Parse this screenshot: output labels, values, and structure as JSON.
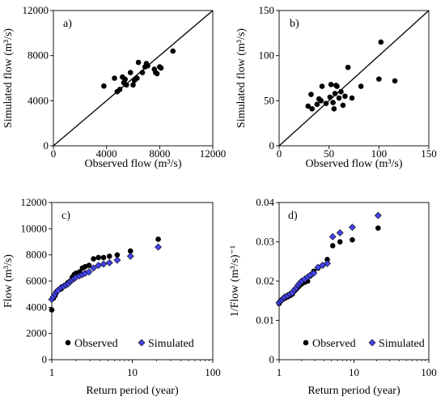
{
  "chart_data": [
    {
      "panel": "a)",
      "type": "scatter",
      "xlabel": "Observed flow (m³/s)",
      "ylabel": "Simulated flow (m³/s)",
      "xlim": [
        0,
        12000
      ],
      "ylim": [
        0,
        12000
      ],
      "xticks": [
        "0",
        "4000",
        "8000",
        "12000"
      ],
      "yticks": [
        "0",
        "4000",
        "8000",
        "12000"
      ],
      "one_to_one_line": true,
      "series": [
        {
          "points": [
            [
              3800,
              5300
            ],
            [
              4600,
              6000
            ],
            [
              4800,
              4800
            ],
            [
              5000,
              5000
            ],
            [
              5200,
              6100
            ],
            [
              5300,
              5600
            ],
            [
              5400,
              5900
            ],
            [
              5500,
              5400
            ],
            [
              5800,
              6500
            ],
            [
              6000,
              5400
            ],
            [
              6100,
              5800
            ],
            [
              6300,
              6000
            ],
            [
              6400,
              7400
            ],
            [
              6700,
              6500
            ],
            [
              6900,
              7000
            ],
            [
              7000,
              7300
            ],
            [
              7100,
              7100
            ],
            [
              7600,
              6800
            ],
            [
              7700,
              6500
            ],
            [
              7800,
              6400
            ],
            [
              8000,
              7000
            ],
            [
              8100,
              6900
            ],
            [
              9000,
              8400
            ]
          ]
        }
      ]
    },
    {
      "panel": "b)",
      "type": "scatter",
      "xlabel": "Observed flow (m³/s)",
      "ylabel": "Simulated flow (m³/s)",
      "xlim": [
        0,
        150
      ],
      "ylim": [
        0,
        150
      ],
      "xticks": [
        "0",
        "50",
        "100",
        "150"
      ],
      "yticks": [
        "0",
        "50",
        "100",
        "150"
      ],
      "one_to_one_line": true,
      "series": [
        {
          "points": [
            [
              29,
              44
            ],
            [
              32,
              57
            ],
            [
              33,
              41
            ],
            [
              38,
              46
            ],
            [
              40,
              52
            ],
            [
              42,
              50
            ],
            [
              43,
              66
            ],
            [
              47,
              47
            ],
            [
              51,
              54
            ],
            [
              52,
              68
            ],
            [
              54,
              48
            ],
            [
              55,
              41
            ],
            [
              56,
              58
            ],
            [
              57,
              67
            ],
            [
              58,
              66
            ],
            [
              60,
              53
            ],
            [
              62,
              60
            ],
            [
              64,
              45
            ],
            [
              66,
              55
            ],
            [
              69,
              87
            ],
            [
              73,
              53
            ],
            [
              82,
              66
            ],
            [
              100,
              74
            ],
            [
              102,
              115
            ],
            [
              116,
              72
            ]
          ]
        }
      ]
    },
    {
      "panel": "c)",
      "type": "scatter",
      "xlabel": "Return period (year)",
      "ylabel": "Flow (m³/s)",
      "xscale": "log",
      "xlim": [
        1,
        100
      ],
      "ylim": [
        0,
        12000
      ],
      "xticks": [
        "1",
        "10",
        "100"
      ],
      "yticks": [
        "0",
        "2000",
        "4000",
        "6000",
        "8000",
        "10000",
        "12000"
      ],
      "legend": "bottom",
      "series": [
        {
          "name": "Observed",
          "marker": "circle",
          "color": "#000000",
          "points": [
            [
              1.0,
              3800
            ],
            [
              1.05,
              4700
            ],
            [
              1.1,
              4900
            ],
            [
              1.15,
              5200
            ],
            [
              1.2,
              5300
            ],
            [
              1.3,
              5400
            ],
            [
              1.4,
              5600
            ],
            [
              1.5,
              5700
            ],
            [
              1.6,
              5900
            ],
            [
              1.7,
              6000
            ],
            [
              1.8,
              6300
            ],
            [
              1.9,
              6500
            ],
            [
              2.0,
              6600
            ],
            [
              2.2,
              6700
            ],
            [
              2.4,
              7000
            ],
            [
              2.6,
              7100
            ],
            [
              2.9,
              7200
            ],
            [
              3.3,
              7700
            ],
            [
              3.8,
              7800
            ],
            [
              4.4,
              7800
            ],
            [
              5.2,
              7900
            ],
            [
              6.5,
              8000
            ],
            [
              9.5,
              8300
            ],
            [
              21.0,
              9200
            ]
          ]
        },
        {
          "name": "Simulated",
          "marker": "diamond",
          "color": "#4444ee",
          "points": [
            [
              1.0,
              4600
            ],
            [
              1.05,
              4800
            ],
            [
              1.1,
              5000
            ],
            [
              1.15,
              5200
            ],
            [
              1.2,
              5300
            ],
            [
              1.3,
              5500
            ],
            [
              1.4,
              5600
            ],
            [
              1.5,
              5700
            ],
            [
              1.6,
              5800
            ],
            [
              1.7,
              6000
            ],
            [
              1.8,
              6100
            ],
            [
              1.9,
              6200
            ],
            [
              2.0,
              6300
            ],
            [
              2.2,
              6400
            ],
            [
              2.4,
              6500
            ],
            [
              2.6,
              6600
            ],
            [
              2.9,
              6700
            ],
            [
              3.3,
              7000
            ],
            [
              3.8,
              7200
            ],
            [
              4.4,
              7300
            ],
            [
              5.2,
              7400
            ],
            [
              6.5,
              7600
            ],
            [
              9.5,
              7900
            ],
            [
              21.0,
              8600
            ]
          ]
        }
      ]
    },
    {
      "panel": "d)",
      "type": "scatter",
      "xlabel": "Return period (year)",
      "ylabel": "1/Flow (m³/s)⁻¹",
      "xscale": "log",
      "xlim": [
        1,
        100
      ],
      "ylim": [
        0,
        0.04
      ],
      "xticks": [
        "1",
        "10",
        "100"
      ],
      "yticks": [
        "0",
        "0.01",
        "0.02",
        "0.03",
        "0.04"
      ],
      "legend": "bottom",
      "series": [
        {
          "name": "Observed",
          "marker": "circle",
          "color": "#000000",
          "points": [
            [
              1.0,
              0.0143
            ],
            [
              1.05,
              0.015
            ],
            [
              1.1,
              0.0153
            ],
            [
              1.15,
              0.0155
            ],
            [
              1.2,
              0.0157
            ],
            [
              1.3,
              0.016
            ],
            [
              1.4,
              0.0163
            ],
            [
              1.5,
              0.0167
            ],
            [
              1.6,
              0.0175
            ],
            [
              1.7,
              0.018
            ],
            [
              1.8,
              0.0185
            ],
            [
              1.9,
              0.019
            ],
            [
              2.0,
              0.0193
            ],
            [
              2.2,
              0.0197
            ],
            [
              2.4,
              0.02
            ],
            [
              2.6,
              0.0213
            ],
            [
              2.9,
              0.0225
            ],
            [
              3.3,
              0.0233
            ],
            [
              3.8,
              0.024
            ],
            [
              4.4,
              0.0255
            ],
            [
              5.2,
              0.029
            ],
            [
              6.5,
              0.03
            ],
            [
              9.5,
              0.0305
            ],
            [
              21.0,
              0.0335
            ]
          ]
        },
        {
          "name": "Simulated",
          "marker": "diamond",
          "color": "#4444ee",
          "points": [
            [
              1.0,
              0.0145
            ],
            [
              1.05,
              0.015
            ],
            [
              1.1,
              0.0153
            ],
            [
              1.15,
              0.0157
            ],
            [
              1.2,
              0.016
            ],
            [
              1.3,
              0.0163
            ],
            [
              1.4,
              0.0167
            ],
            [
              1.5,
              0.017
            ],
            [
              1.6,
              0.0178
            ],
            [
              1.7,
              0.0183
            ],
            [
              1.8,
              0.019
            ],
            [
              1.9,
              0.0195
            ],
            [
              2.0,
              0.02
            ],
            [
              2.2,
              0.0205
            ],
            [
              2.4,
              0.021
            ],
            [
              2.6,
              0.0215
            ],
            [
              2.9,
              0.022
            ],
            [
              3.3,
              0.0235
            ],
            [
              3.8,
              0.024
            ],
            [
              4.4,
              0.0245
            ],
            [
              5.2,
              0.0313
            ],
            [
              6.5,
              0.0323
            ],
            [
              9.5,
              0.0337
            ],
            [
              21.0,
              0.0367
            ]
          ]
        }
      ]
    }
  ]
}
